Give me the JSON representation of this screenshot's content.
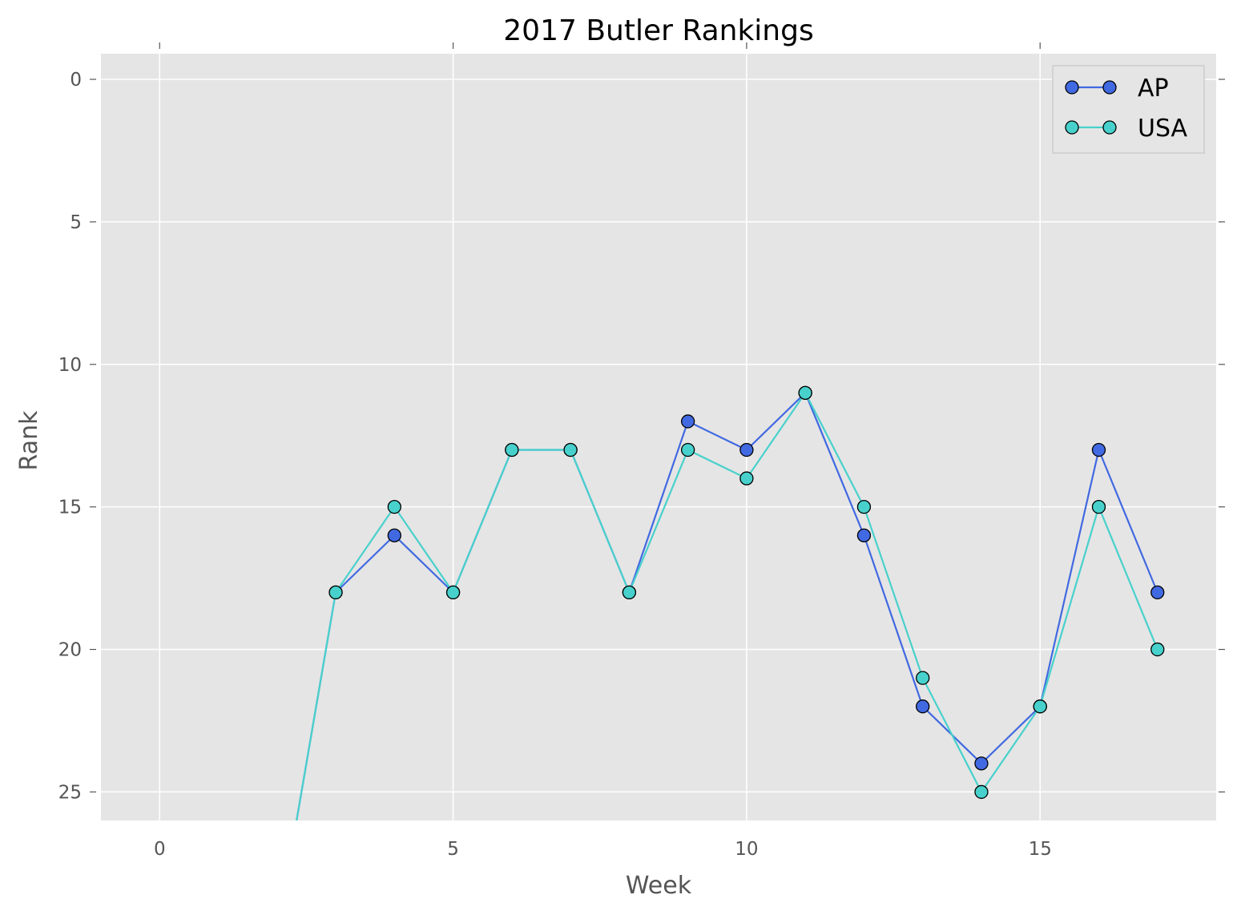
{
  "chart_data": {
    "type": "line",
    "title": "2017 Butler Rankings",
    "xlabel": "Week",
    "ylabel": "Rank",
    "xlim": [
      -1,
      18
    ],
    "ylim": [
      26,
      -0.9
    ],
    "y_inverted": true,
    "xticks": [
      0,
      5,
      10,
      15
    ],
    "yticks": [
      0,
      5,
      10,
      15,
      20,
      25
    ],
    "xtick_labels": [
      "0",
      "5",
      "10",
      "15"
    ],
    "ytick_labels": [
      "0",
      "5",
      "10",
      "15",
      "20",
      "25"
    ],
    "grid": true,
    "legend_position": "top-right",
    "background_color": "#e5e5e5",
    "grid_color": "#ffffff",
    "series": [
      {
        "name": "AP",
        "color": "#4169e1",
        "marker": "circle",
        "lead_in_from": [
          2,
          30
        ],
        "x": [
          3,
          4,
          5,
          6,
          7,
          8,
          9,
          10,
          11,
          12,
          13,
          14,
          15,
          16,
          17
        ],
        "y": [
          18,
          16,
          18,
          13,
          13,
          18,
          12,
          13,
          11,
          16,
          22,
          24,
          22,
          13,
          18
        ]
      },
      {
        "name": "USA",
        "color": "#48d1cc",
        "marker": "circle",
        "lead_in_from": [
          2,
          30
        ],
        "x": [
          3,
          4,
          5,
          6,
          7,
          8,
          9,
          10,
          11,
          12,
          13,
          14,
          15,
          16,
          17
        ],
        "y": [
          18,
          15,
          18,
          13,
          13,
          18,
          13,
          14,
          11,
          15,
          21,
          25,
          22,
          15,
          20
        ]
      }
    ]
  }
}
